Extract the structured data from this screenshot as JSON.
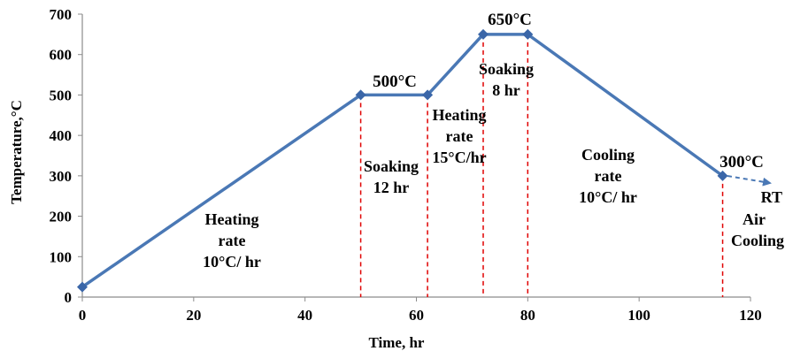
{
  "chart_data": {
    "type": "line",
    "xlabel": "Time, hr",
    "ylabel": "Temperature,°C",
    "xlim": [
      0,
      120
    ],
    "ylim": [
      0,
      700
    ],
    "x_ticks": [
      "0",
      "20",
      "40",
      "60",
      "80",
      "100",
      "120"
    ],
    "y_ticks": [
      "0",
      "100",
      "200",
      "300",
      "400",
      "500",
      "600",
      "700"
    ],
    "grid": false,
    "series": [
      {
        "x": [
          0,
          50,
          62,
          72,
          80,
          115
        ],
        "y": [
          25,
          500,
          500,
          650,
          650,
          300
        ]
      }
    ],
    "line_color": "#4a78b5",
    "marker_color": "#3a66a8",
    "guide_color": "#e00000",
    "guide_lines_x": [
      50,
      62,
      72,
      80,
      115
    ],
    "temperature_labels": [
      "500°C",
      "650°C",
      "300°C"
    ],
    "annotations": {
      "heating1": [
        "Heating",
        "rate",
        "10°C/ hr"
      ],
      "soaking1": [
        "Soaking",
        "12 hr"
      ],
      "heating2": [
        "Heating",
        "rate",
        "15°C/hr"
      ],
      "soaking2": [
        "Soaking",
        "8 hr"
      ],
      "cooling": [
        "Cooling",
        "rate",
        "10°C/ hr"
      ],
      "rt": "RT",
      "air": [
        "Air",
        "Cooling"
      ]
    }
  }
}
